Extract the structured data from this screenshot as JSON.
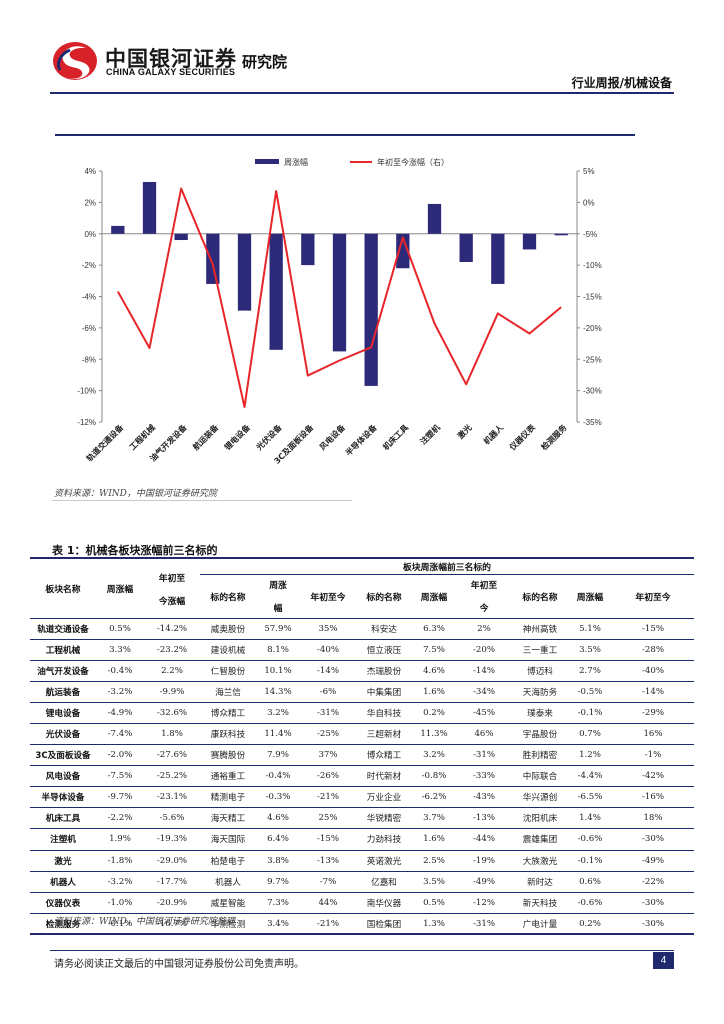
{
  "header": {
    "logo_cn": "中国银河证券",
    "logo_en": "CHINA GALAXY SECURITIES",
    "institute": "研究院",
    "report_type": "行业周报/机械设备"
  },
  "colors": {
    "brand_navy": "#1f2a6e",
    "bar": "#2e2a7a",
    "line": "#e8262a",
    "logo_red": "#d7222a"
  },
  "chart_data": {
    "type": "bar+line",
    "categories": [
      "轨道交通设备",
      "工程机械",
      "油气开发设备",
      "航运装备",
      "锂电设备",
      "光伏设备",
      "3C及面板设备",
      "风电设备",
      "半导体设备",
      "机床工具",
      "注塑机",
      "激光",
      "机器人",
      "仪器仪表",
      "检测服务"
    ],
    "series": [
      {
        "name": "周涨幅",
        "type": "bar",
        "axis": "left",
        "values": [
          0.5,
          3.3,
          -0.4,
          -3.2,
          -4.9,
          -7.4,
          -2.0,
          -7.5,
          -9.7,
          -2.2,
          1.9,
          -1.8,
          -3.2,
          -1.0,
          -0.1
        ]
      },
      {
        "name": "年初至今涨幅（右）",
        "type": "line",
        "axis": "right",
        "values": [
          -14.2,
          -23.2,
          2.2,
          -9.9,
          -32.6,
          1.8,
          -27.6,
          -25.2,
          -23.1,
          -5.6,
          -19.3,
          -29.0,
          -17.7,
          -20.9,
          -16.7
        ]
      }
    ],
    "y_left": {
      "min": -12,
      "max": 4,
      "ticks": [
        "4%",
        "2%",
        "0%",
        "-2%",
        "-4%",
        "-6%",
        "-8%",
        "-10%",
        "-12%"
      ]
    },
    "y_right": {
      "min": -35,
      "max": 5,
      "ticks": [
        "5%",
        "0%",
        "-5%",
        "-10%",
        "-15%",
        "-20%",
        "-25%",
        "-30%",
        "-35%"
      ]
    },
    "legend_position": "top-center",
    "grid": false
  },
  "source_chart": "资料来源：WIND，中国银河证券研究院",
  "table": {
    "title": "表 1：机械各板块涨幅前三名标的",
    "group_header": "板块周涨幅前三名标的",
    "headers": {
      "sector": "板块名称",
      "weekly": "周涨幅",
      "ytd_line1": "年初至",
      "ytd_line2": "今涨幅",
      "target": "标的名称",
      "weekly_col_line1": "周涨",
      "weekly_col_line2": "幅",
      "ytd_short": "年初至今",
      "ytd_col_line1": "年初至",
      "ytd_col_line2": "今"
    },
    "rows": [
      [
        "轨道交通设备",
        "0.5%",
        "-14.2%",
        "威奥股份",
        "57.9%",
        "35%",
        "科安达",
        "6.3%",
        "2%",
        "神州高铁",
        "5.1%",
        "-15%"
      ],
      [
        "工程机械",
        "3.3%",
        "-23.2%",
        "建设机械",
        "8.1%",
        "-40%",
        "恒立液压",
        "7.5%",
        "-20%",
        "三一重工",
        "3.5%",
        "-28%"
      ],
      [
        "油气开发设备",
        "-0.4%",
        "2.2%",
        "仁智股份",
        "10.1%",
        "-14%",
        "杰瑞股份",
        "4.6%",
        "-14%",
        "博迈科",
        "2.7%",
        "-40%"
      ],
      [
        "航运装备",
        "-3.2%",
        "-9.9%",
        "海兰信",
        "14.3%",
        "-6%",
        "中集集团",
        "1.6%",
        "-34%",
        "天海防务",
        "-0.5%",
        "-14%"
      ],
      [
        "锂电设备",
        "-4.9%",
        "-32.6%",
        "博众精工",
        "3.2%",
        "-31%",
        "华自科技",
        "0.2%",
        "-45%",
        "璞泰来",
        "-0.1%",
        "-29%"
      ],
      [
        "光伏设备",
        "-7.4%",
        "1.8%",
        "康跃科技",
        "11.4%",
        "-25%",
        "三超新材",
        "11.3%",
        "46%",
        "宇晶股份",
        "0.7%",
        "16%"
      ],
      [
        "3C及面板设备",
        "-2.0%",
        "-27.6%",
        "赛腾股份",
        "7.9%",
        "37%",
        "博众精工",
        "3.2%",
        "-31%",
        "胜利精密",
        "1.2%",
        "-1%"
      ],
      [
        "风电设备",
        "-7.5%",
        "-25.2%",
        "通裕重工",
        "-0.4%",
        "-26%",
        "时代新材",
        "-0.8%",
        "-33%",
        "中际联合",
        "-4.4%",
        "-42%"
      ],
      [
        "半导体设备",
        "-9.7%",
        "-23.1%",
        "精测电子",
        "-0.3%",
        "-21%",
        "万业企业",
        "-6.2%",
        "-43%",
        "华兴源创",
        "-6.5%",
        "-16%"
      ],
      [
        "机床工具",
        "-2.2%",
        "-5.6%",
        "海天精工",
        "4.6%",
        "25%",
        "华锐精密",
        "3.7%",
        "-13%",
        "沈阳机床",
        "1.4%",
        "18%"
      ],
      [
        "注塑机",
        "1.9%",
        "-19.3%",
        "海天国际",
        "6.4%",
        "-15%",
        "力劲科技",
        "1.6%",
        "-44%",
        "震雄集团",
        "-0.6%",
        "-30%"
      ],
      [
        "激光",
        "-1.8%",
        "-29.0%",
        "柏楚电子",
        "3.8%",
        "-13%",
        "英诺激光",
        "2.5%",
        "-19%",
        "大族激光",
        "-0.1%",
        "-49%"
      ],
      [
        "机器人",
        "-3.2%",
        "-17.7%",
        "机器人",
        "9.7%",
        "-7%",
        "亿嘉和",
        "3.5%",
        "-49%",
        "新时达",
        "0.6%",
        "-22%"
      ],
      [
        "仪器仪表",
        "-1.0%",
        "-20.9%",
        "威星智能",
        "7.3%",
        "44%",
        "南华仪器",
        "0.5%",
        "-12%",
        "新天科技",
        "-0.6%",
        "-30%"
      ],
      [
        "检测服务",
        "-0.1%",
        "-16.7%",
        "华测检测",
        "3.4%",
        "-21%",
        "国检集团",
        "1.3%",
        "-31%",
        "广电计量",
        "0.2%",
        "-30%"
      ]
    ]
  },
  "source_table": "资料来源：WIND，中国银河证券研究院整理",
  "footer": {
    "disclaimer": "请务必阅读正文最后的中国银河证券股份公司免责声明。",
    "page_number": "4"
  }
}
